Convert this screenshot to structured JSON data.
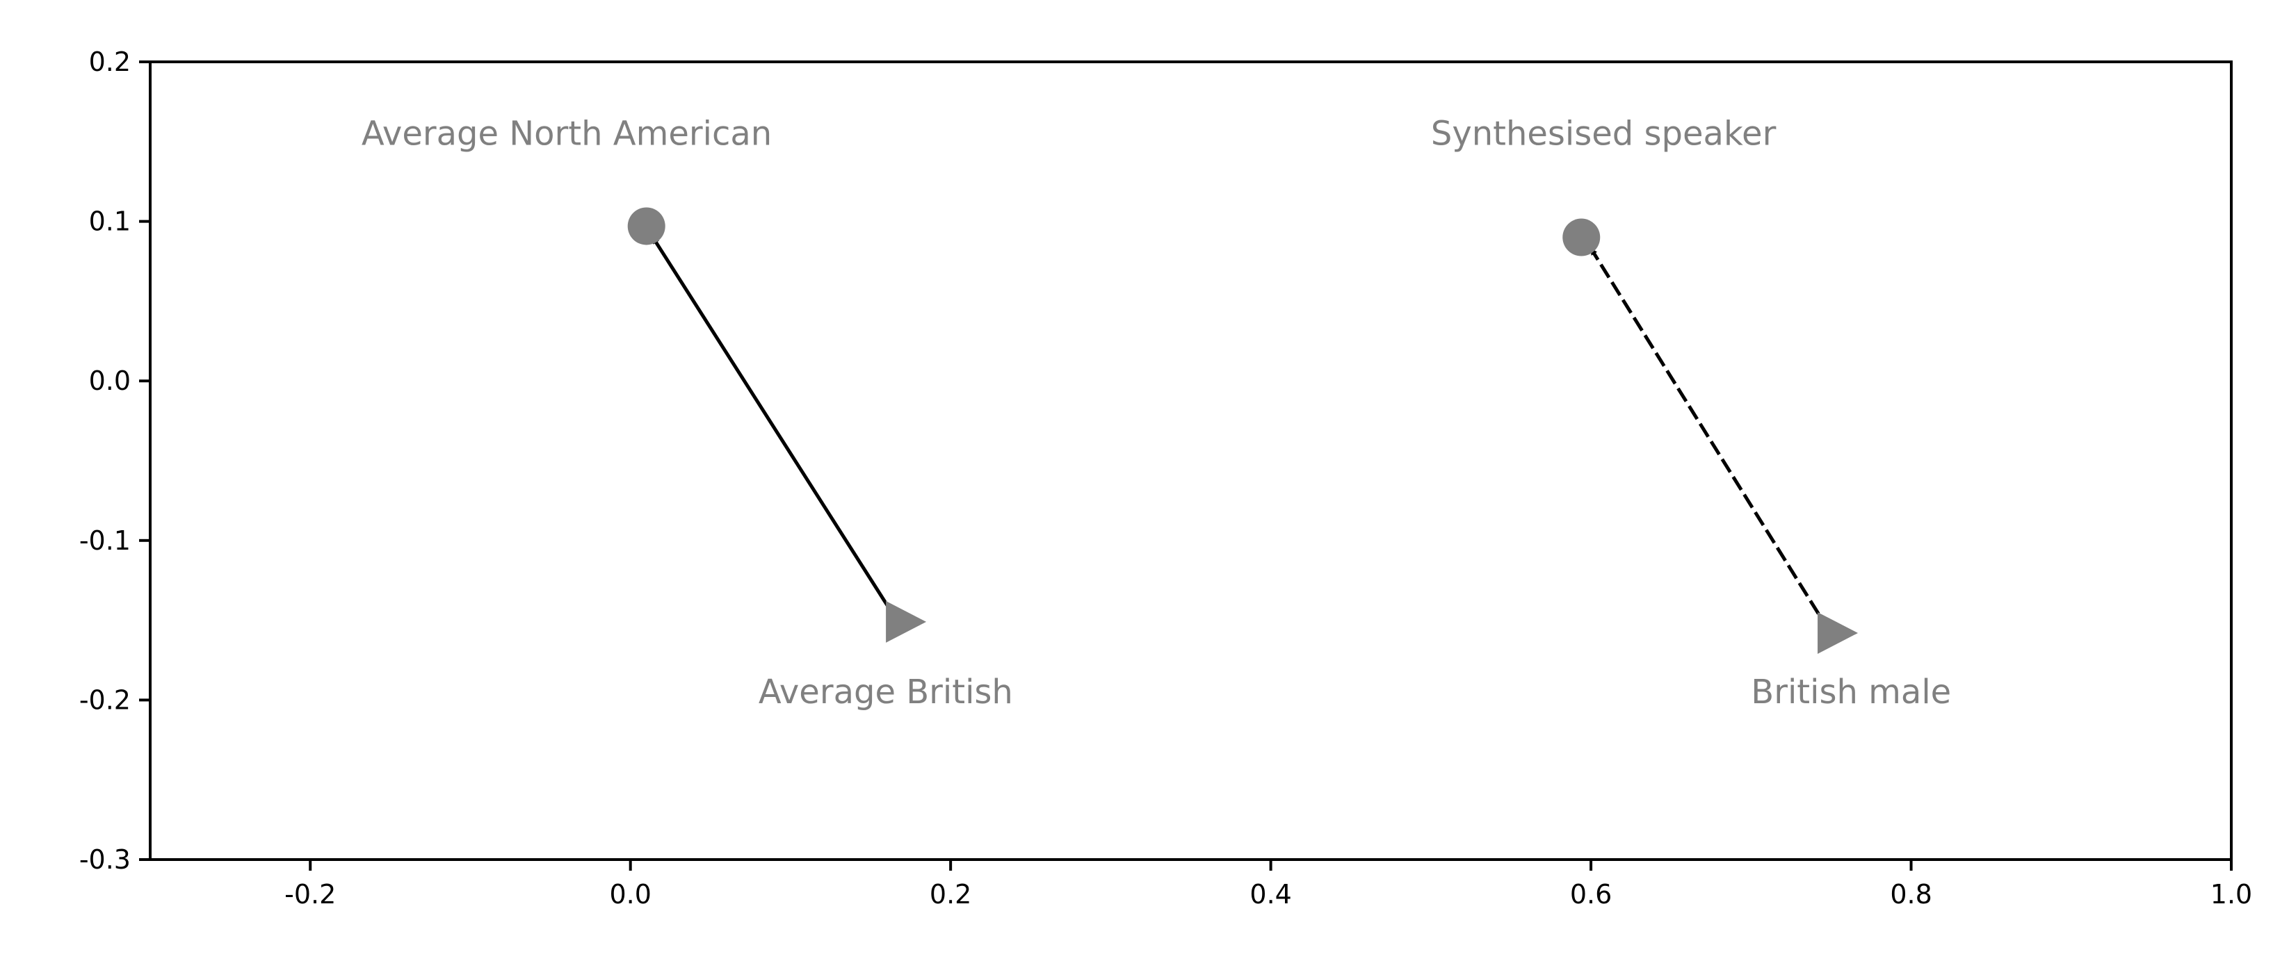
{
  "chart_data": {
    "type": "scatter",
    "title": "",
    "xlabel": "",
    "ylabel": "",
    "xlim": [
      -0.3,
      1.0
    ],
    "ylim": [
      -0.3,
      0.2
    ],
    "xticks": [
      -0.2,
      0.0,
      0.2,
      0.4,
      0.6,
      0.8,
      1.0
    ],
    "xtick_labels": [
      "-0.2",
      "0.0",
      "0.2",
      "0.4",
      "0.6",
      "0.8",
      "1.0"
    ],
    "yticks": [
      0.2,
      0.1,
      0.0,
      -0.1,
      -0.2,
      -0.3
    ],
    "ytick_labels": [
      "0.2",
      "0.1",
      "0.0",
      "-0.1",
      "-0.2",
      "-0.3"
    ],
    "grid": false,
    "legend": "none",
    "marker_color": "#808080",
    "label_color": "#808080",
    "arrow_color": "#000000",
    "points": [
      {
        "label": "Average North American",
        "marker": "circle",
        "x": 0.01,
        "y": 0.097
      },
      {
        "label": "Average British",
        "marker": "triangle-right",
        "x": 0.17,
        "y": -0.151
      },
      {
        "label": "Synthesised speaker",
        "marker": "circle",
        "x": 0.594,
        "y": 0.09
      },
      {
        "label": "British male",
        "marker": "triangle-right",
        "x": 0.752,
        "y": -0.158
      }
    ],
    "annotations": [
      {
        "text": "Average North American",
        "x": -0.168,
        "y": 0.148
      },
      {
        "text": "Average British",
        "x": 0.08,
        "y": -0.202
      },
      {
        "text": "Synthesised speaker",
        "x": 0.5,
        "y": 0.148
      },
      {
        "text": "British male",
        "x": 0.7,
        "y": -0.202
      }
    ],
    "arrows": [
      {
        "from": [
          0.167,
          -0.151
        ],
        "to": [
          0.014,
          0.09
        ],
        "style": "solid"
      },
      {
        "from": [
          0.749,
          -0.157
        ],
        "to": [
          0.6,
          0.083
        ],
        "style": "dashed"
      }
    ]
  }
}
